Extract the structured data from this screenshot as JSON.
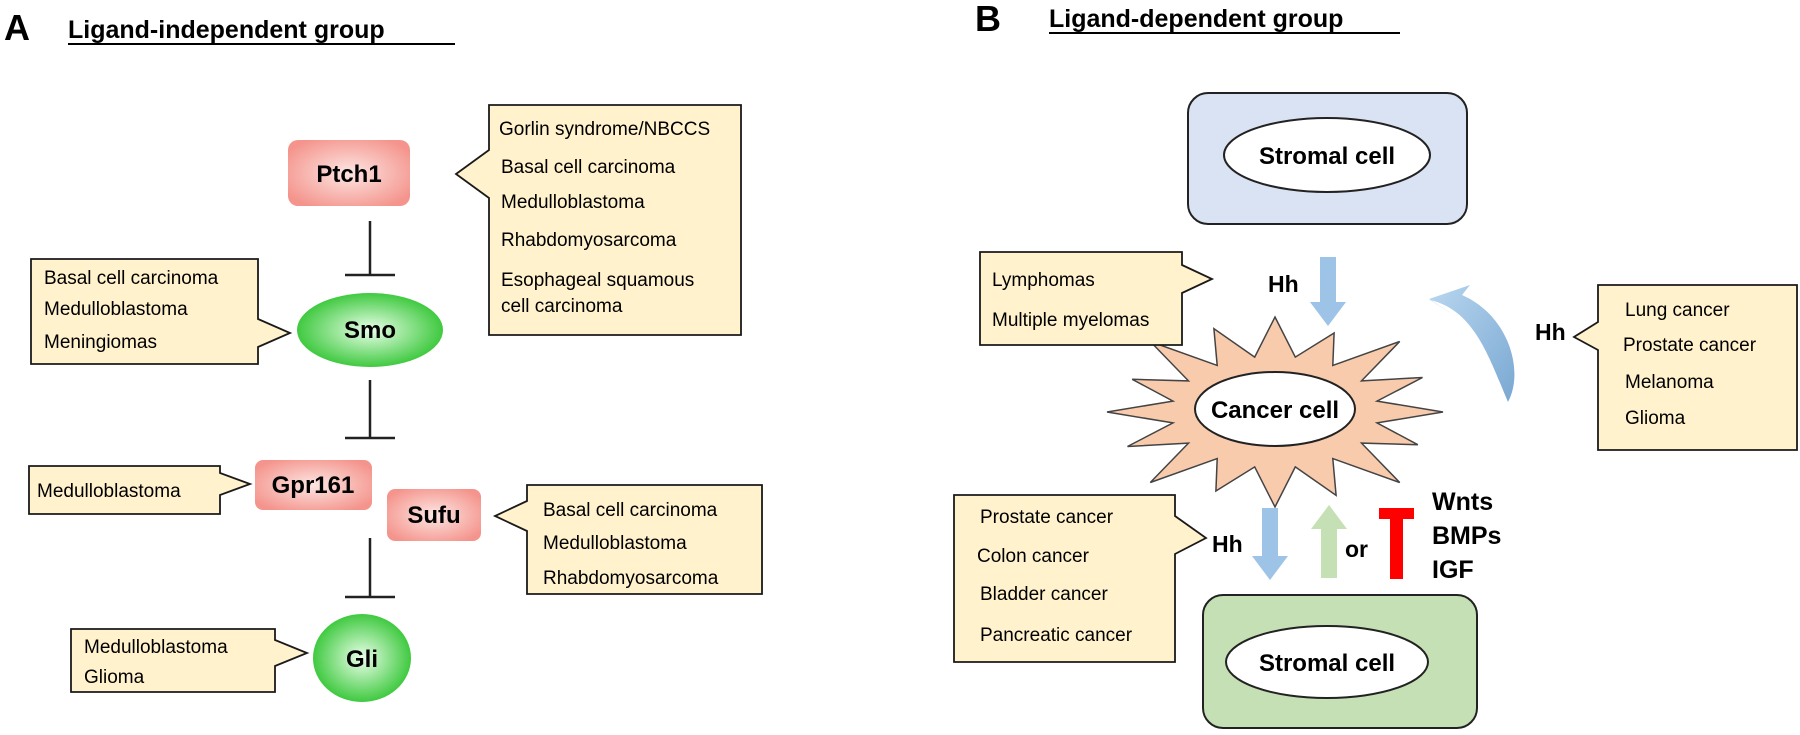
{
  "panel_a": {
    "letter": "A",
    "title": "Ligand-independent group",
    "nodes": {
      "ptch1": "Ptch1",
      "smo": "Smo",
      "gpr161": "Gpr161",
      "sufu": "Sufu",
      "gli": "Gli"
    },
    "callouts": {
      "ptch1": [
        "Gorlin syndrome/NBCCS",
        "Basal cell carcinoma",
        "Medulloblastoma",
        "Rhabdomyosarcoma",
        "Esophageal squamous",
        "cell carcinoma"
      ],
      "smo": [
        "Basal cell carcinoma",
        "Medulloblastoma",
        "Meningiomas"
      ],
      "gpr161": [
        "Medulloblastoma"
      ],
      "sufu": [
        "Basal cell carcinoma",
        "Medulloblastoma",
        "Rhabdomyosarcoma"
      ],
      "gli": [
        "Medulloblastoma",
        "Glioma"
      ]
    }
  },
  "panel_b": {
    "letter": "B",
    "title": "Ligand-dependent group",
    "stromal_top": "Stromal cell",
    "cancer_cell": "Cancer cell",
    "stromal_bottom": "Stromal cell",
    "hh_label": "Hh",
    "or_label": "or",
    "factors": [
      "Wnts",
      "BMPs",
      "IGF"
    ],
    "callouts": {
      "paracrine": [
        "Lymphomas",
        "Multiple myelomas"
      ],
      "autocrine": [
        "Lung cancer",
        "Prostate cancer",
        "Melanoma",
        "Glioma"
      ],
      "reverse": [
        "Prostate cancer",
        "Colon cancer",
        "Bladder cancer",
        "Pancreatic cancer"
      ]
    }
  },
  "colors": {
    "callout_fill": "#fff2cc",
    "pink_node": "#f4948c",
    "green_node": "#33cc33",
    "blue_box": "#dae3f3",
    "green_box": "#c5e0b4",
    "star_fill": "#f8cbad",
    "blue_arrow": "#9dc3e6",
    "green_arrow": "#c5e0b4",
    "red_inhibitor": "#ff0000"
  }
}
